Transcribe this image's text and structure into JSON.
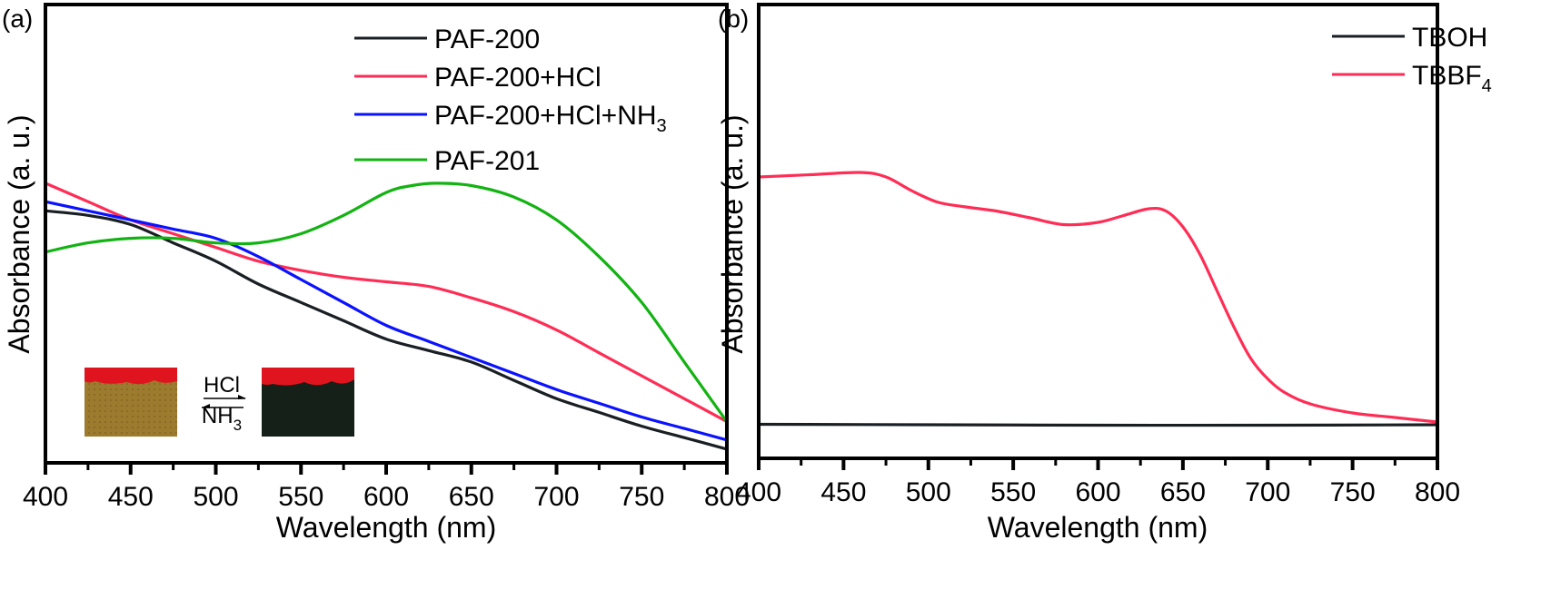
{
  "chart_data": [
    {
      "type": "line",
      "panel_label": "(a)",
      "title": "",
      "xlabel": "Wavelength (nm)",
      "ylabel": "Absorbance (a. u.)",
      "xlim": [
        400,
        800
      ],
      "ylim": [
        0,
        1
      ],
      "x_ticks": [
        400,
        450,
        500,
        550,
        600,
        650,
        700,
        750,
        800
      ],
      "y_ticks": [],
      "grid": false,
      "legend_position": "top-right",
      "series": [
        {
          "name": "PAF-200",
          "name_sub": "",
          "color": "#1a1f24",
          "x": [
            400,
            425,
            450,
            475,
            500,
            525,
            550,
            575,
            600,
            625,
            650,
            675,
            700,
            725,
            750,
            775,
            800
          ],
          "y": [
            0.55,
            0.54,
            0.52,
            0.48,
            0.44,
            0.39,
            0.35,
            0.31,
            0.27,
            0.245,
            0.22,
            0.18,
            0.14,
            0.11,
            0.08,
            0.055,
            0.03
          ]
        },
        {
          "name": "PAF-200+HCl",
          "name_sub": "",
          "color": "#ff2d55",
          "x": [
            400,
            425,
            450,
            475,
            500,
            525,
            550,
            575,
            600,
            625,
            650,
            675,
            700,
            725,
            750,
            775,
            800
          ],
          "y": [
            0.61,
            0.57,
            0.53,
            0.5,
            0.47,
            0.44,
            0.42,
            0.405,
            0.395,
            0.385,
            0.36,
            0.33,
            0.29,
            0.24,
            0.19,
            0.14,
            0.09
          ]
        },
        {
          "name": "PAF-200+HCl+NH",
          "name_sub": "3",
          "color": "#0a12ff",
          "x": [
            400,
            425,
            450,
            475,
            500,
            525,
            550,
            575,
            600,
            625,
            650,
            675,
            700,
            725,
            750,
            775,
            800
          ],
          "y": [
            0.57,
            0.55,
            0.53,
            0.51,
            0.49,
            0.45,
            0.4,
            0.35,
            0.3,
            0.265,
            0.23,
            0.195,
            0.16,
            0.13,
            0.1,
            0.075,
            0.05
          ]
        },
        {
          "name": "PAF-201",
          "name_sub": "",
          "color": "#12b312",
          "x": [
            400,
            425,
            450,
            475,
            500,
            525,
            550,
            575,
            600,
            615,
            630,
            650,
            675,
            700,
            725,
            750,
            775,
            800
          ],
          "y": [
            0.46,
            0.48,
            0.49,
            0.49,
            0.48,
            0.48,
            0.5,
            0.54,
            0.59,
            0.605,
            0.61,
            0.605,
            0.58,
            0.53,
            0.45,
            0.35,
            0.22,
            0.09
          ]
        }
      ],
      "inset": {
        "forward_reagent": "HCl",
        "reverse_reagent": "NH",
        "reverse_reagent_sub": "3",
        "left_sample_color": "#9c7a2e",
        "right_sample_color": "#152018",
        "cap_color": "#e0141e"
      }
    },
    {
      "type": "line",
      "panel_label": "(b)",
      "title": "",
      "xlabel": "Wavelength (nm)",
      "ylabel": "Absorbance (a. u.)",
      "xlim": [
        400,
        800
      ],
      "ylim": [
        0,
        1
      ],
      "x_ticks": [
        400,
        450,
        500,
        550,
        600,
        650,
        700,
        750,
        800
      ],
      "y_ticks": [],
      "grid": false,
      "legend_position": "top-right",
      "series": [
        {
          "name": "TBOH",
          "name_sub": "",
          "color": "#1a1f24",
          "x": [
            400,
            500,
            600,
            700,
            800
          ],
          "y": [
            0.075,
            0.074,
            0.073,
            0.073,
            0.074
          ]
        },
        {
          "name": "TBBF",
          "name_sub": "4",
          "color": "#ff2d55",
          "x": [
            400,
            430,
            460,
            475,
            490,
            505,
            520,
            540,
            560,
            580,
            600,
            615,
            630,
            640,
            650,
            660,
            670,
            680,
            690,
            700,
            710,
            725,
            750,
            775,
            800
          ],
          "y": [
            0.62,
            0.625,
            0.63,
            0.62,
            0.59,
            0.565,
            0.555,
            0.545,
            0.53,
            0.515,
            0.52,
            0.535,
            0.55,
            0.545,
            0.51,
            0.45,
            0.37,
            0.29,
            0.22,
            0.175,
            0.145,
            0.12,
            0.1,
            0.09,
            0.08
          ]
        }
      ]
    }
  ]
}
